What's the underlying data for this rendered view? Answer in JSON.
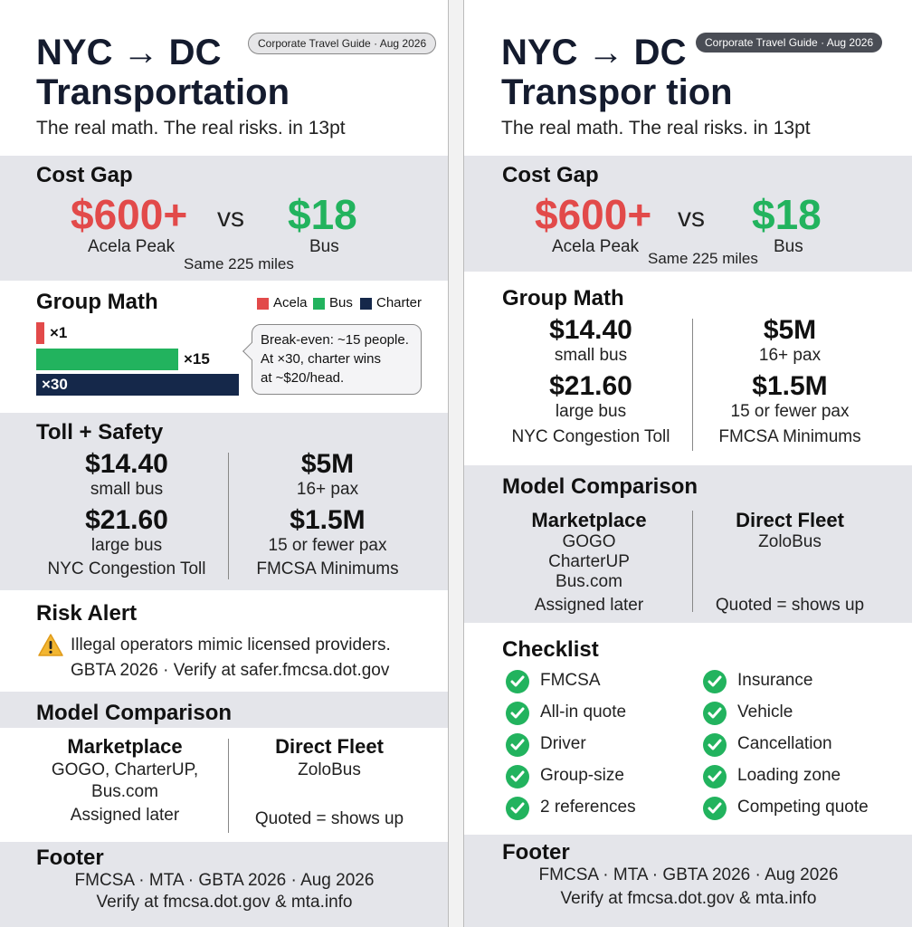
{
  "colors": {
    "red": "#e24a4a",
    "green": "#22b35e",
    "navy": "#15284a",
    "panel": "#e4e5ea"
  },
  "left": {
    "title_line1": "NYC → DC",
    "title_line2": "Transportation",
    "subtitle": "The real math. The real risks. in 13pt",
    "badge": "Corporate Travel Guide · Aug 2026",
    "cost_gap": {
      "heading": "Cost Gap",
      "acela_price": "$600+",
      "acela_label": "Acela Peak",
      "vs": "vs",
      "bus_price": "$18",
      "bus_label": "Bus",
      "note": "Same 225 miles"
    },
    "group_math": {
      "heading": "Group Math",
      "legend": [
        "Acela",
        "Bus",
        "Charter"
      ],
      "bars": [
        {
          "label": "×1",
          "fraction": 0.04
        },
        {
          "label": "×15",
          "fraction": 0.7
        },
        {
          "label": "×30",
          "fraction": 1.0
        }
      ],
      "callout": [
        "Break-even: ~15 people.",
        "At ×30, charter wins",
        "at ~$20/head."
      ]
    },
    "toll_safety": {
      "heading": "Toll + Safety",
      "toll1_value": "$14.40",
      "toll1_label": "small bus",
      "toll2_value": "$21.60",
      "toll2_label": "large bus",
      "toll_caption": "NYC Congestion Toll",
      "ins1_value": "$5M",
      "ins1_label": "16+ pax",
      "ins2_value": "$1.5M",
      "ins2_label": "15 or fewer pax",
      "ins_caption": "FMCSA Minimums"
    },
    "risk": {
      "heading": "Risk Alert",
      "icon": "warning-icon",
      "line1": "Illegal operators mimic licensed providers.",
      "line2": "GBTA 2026 · Verify at safer.fmcsa.dot.gov"
    },
    "model": {
      "heading": "Model Comparison",
      "col1_title": "Marketplace",
      "col1_line1": "GOGO, CharterUP,",
      "col1_line2": "Bus.com",
      "col1_note": "Assigned later",
      "col2_title": "Direct Fleet",
      "col2_line1": "ZoloBus",
      "col2_note": "Quoted = shows up"
    },
    "footer": {
      "heading": "Footer",
      "line1": "FMCSA · MTA · GBTA 2026 · Aug 2026",
      "line2": "Verify at fmcsa.dot.gov & mta.info"
    }
  },
  "right": {
    "title_line1": "NYC → DC",
    "title_line2": "Transpor tion",
    "subtitle": "The real math. The real risks. in 13pt",
    "badge": "Corporate Travel Guide · Aug 2026",
    "cost_gap": {
      "heading": "Cost Gap",
      "acela_price": "$600+",
      "acela_label": "Acela Peak",
      "vs": "vs",
      "bus_price": "$18",
      "bus_label": "Bus",
      "note": "Same 225 miles"
    },
    "group_math": {
      "heading": "Group Math",
      "toll1_value": "$14.40",
      "toll1_label": "small bus",
      "toll2_value": "$21.60",
      "toll2_label": "large bus",
      "toll_caption": "NYC Congestion Toll",
      "ins1_value": "$5M",
      "ins1_label": "16+ pax",
      "ins2_value": "$1.5M",
      "ins2_label": "15 or fewer pax",
      "ins_caption": "FMCSA Minimums"
    },
    "model": {
      "heading": "Model Comparison",
      "col1_title": "Marketplace",
      "col1_line1": "GOGO",
      "col1_line2": "CharterUP",
      "col1_line3": "Bus.com",
      "col1_note": "Assigned later",
      "col2_title": "Direct Fleet",
      "col2_line1": "ZoloBus",
      "col2_note": "Quoted = shows up"
    },
    "checklist": {
      "heading": "Checklist",
      "left_items": [
        "FMCSA",
        "All-in quote",
        "Driver",
        "Group-size",
        "2 references"
      ],
      "right_items": [
        "Insurance",
        "Vehicle",
        "Cancellation",
        "Loading zone",
        "Competing quote"
      ]
    },
    "footer": {
      "heading": "Footer",
      "line1": "FMCSA · MTA · GBTA 2026 · Aug 2026",
      "line2": "Verify at fmcsa.dot.gov & mta.info"
    }
  }
}
